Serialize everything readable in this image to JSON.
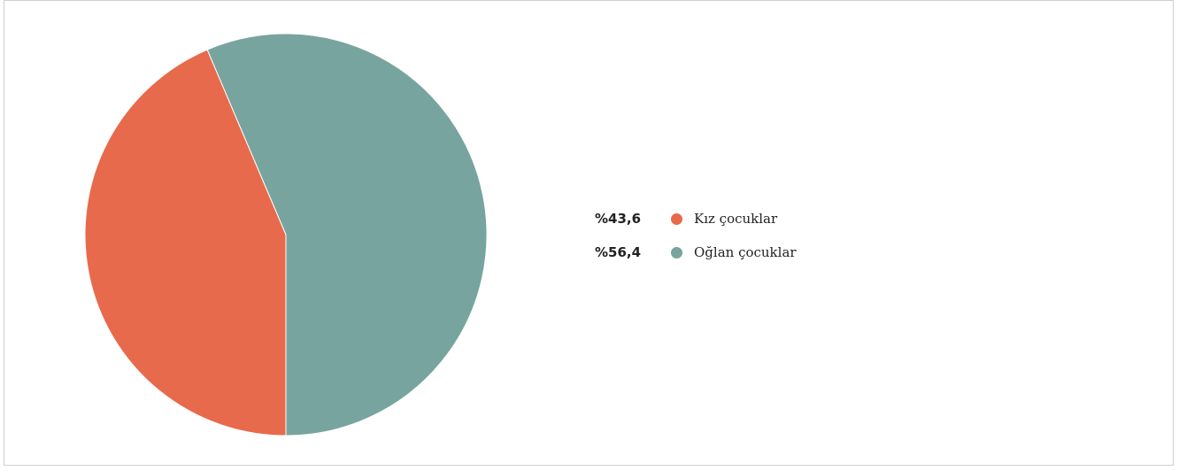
{
  "chart_data": {
    "type": "pie",
    "title": "",
    "slices": [
      {
        "label": "Kız çocuklar",
        "value": 43.6,
        "display": "%43,6",
        "color": "#e86a4c"
      },
      {
        "label": "Oğlan çocuklar",
        "value": 56.4,
        "display": "%56,4",
        "color": "#77a49e"
      }
    ],
    "legend_position": "right",
    "start_slice_direction": "counter-clockwise from bottom"
  }
}
